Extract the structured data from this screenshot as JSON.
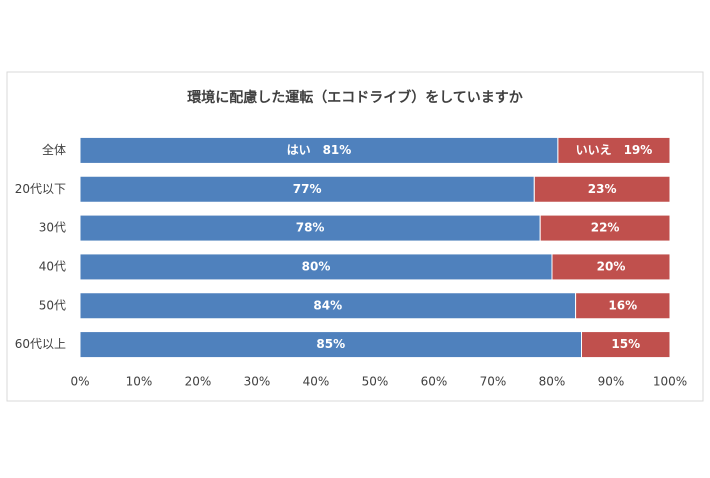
{
  "chart_data": {
    "type": "stacked-bar-horizontal",
    "title": "環境に配慮した運転（エコドライブ）をしていますか",
    "categories": [
      "全体",
      "20代以下",
      "30代",
      "40代",
      "50代",
      "60代以上"
    ],
    "series": [
      {
        "color": "#4f81bd",
        "values": [
          81,
          77,
          78,
          80,
          84,
          85
        ],
        "value_labels": [
          "はい　81%",
          "77%",
          "78%",
          "80%",
          "84%",
          "85%"
        ]
      },
      {
        "color": "#c0504d",
        "values": [
          19,
          23,
          22,
          20,
          16,
          15
        ],
        "value_labels": [
          "いいえ　19%",
          "23%",
          "22%",
          "20%",
          "16%",
          "15%"
        ]
      }
    ],
    "xlim": [
      0,
      100
    ],
    "xticks": [
      {
        "value": 0,
        "label": "0%"
      },
      {
        "value": 10,
        "label": "10%"
      },
      {
        "value": 20,
        "label": "20%"
      },
      {
        "value": 30,
        "label": "30%"
      },
      {
        "value": 40,
        "label": "40%"
      },
      {
        "value": 50,
        "label": "50%"
      },
      {
        "value": 60,
        "label": "60%"
      },
      {
        "value": 70,
        "label": "70%"
      },
      {
        "value": 80,
        "label": "80%"
      },
      {
        "value": 90,
        "label": "90%"
      },
      {
        "value": 100,
        "label": "100%"
      }
    ]
  }
}
